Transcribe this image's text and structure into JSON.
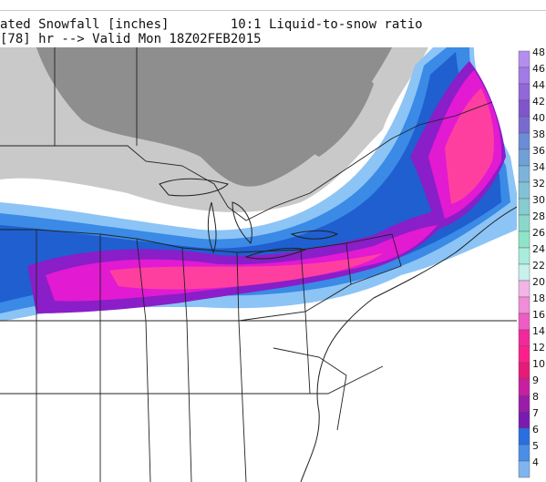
{
  "header": {
    "line1": "ated Snowfall [inches]        10:1 Liquid-to-snow ratio",
    "line2": "[78] hr --> Valid Mon 18Z02FEB2015"
  },
  "legend": {
    "levels": [
      "48",
      "46",
      "44",
      "42",
      "40",
      "38",
      "36",
      "34",
      "32",
      "30",
      "28",
      "26",
      "24",
      "22",
      "20",
      "18",
      "16",
      "14",
      "12",
      "10",
      "9",
      "8",
      "7",
      "6",
      "5",
      "4"
    ],
    "colors": [
      "#b38ef0",
      "#a37ae6",
      "#9167da",
      "#8055cc",
      "#7a6ad0",
      "#6b8cd6",
      "#6fa0d6",
      "#7cb4d8",
      "#82c2d6",
      "#86ccd0",
      "#8ad8cc",
      "#8ee4c8",
      "#a8ecdc",
      "#c8f0ec",
      "#f2b4e6",
      "#f08cd8",
      "#ee5cc4",
      "#f2289c",
      "#ff1f8a",
      "#e61a78",
      "#c81ea0",
      "#9a1ca8",
      "#7a1ab0",
      "#2a6fe0",
      "#4a8ee8",
      "#80b4f0"
    ]
  },
  "map": {
    "region": "Eastern United States and southeastern Canada",
    "colors": {
      "grey_light": "#c9c9c9",
      "grey_dark": "#8e8e8e",
      "blue_light": "#8cc4f5",
      "blue_mid": "#3a8ae6",
      "blue_dark": "#1f5fd0",
      "purple": "#8a1ec8",
      "magenta": "#e21ad2",
      "pink": "#ff3fa0"
    }
  }
}
